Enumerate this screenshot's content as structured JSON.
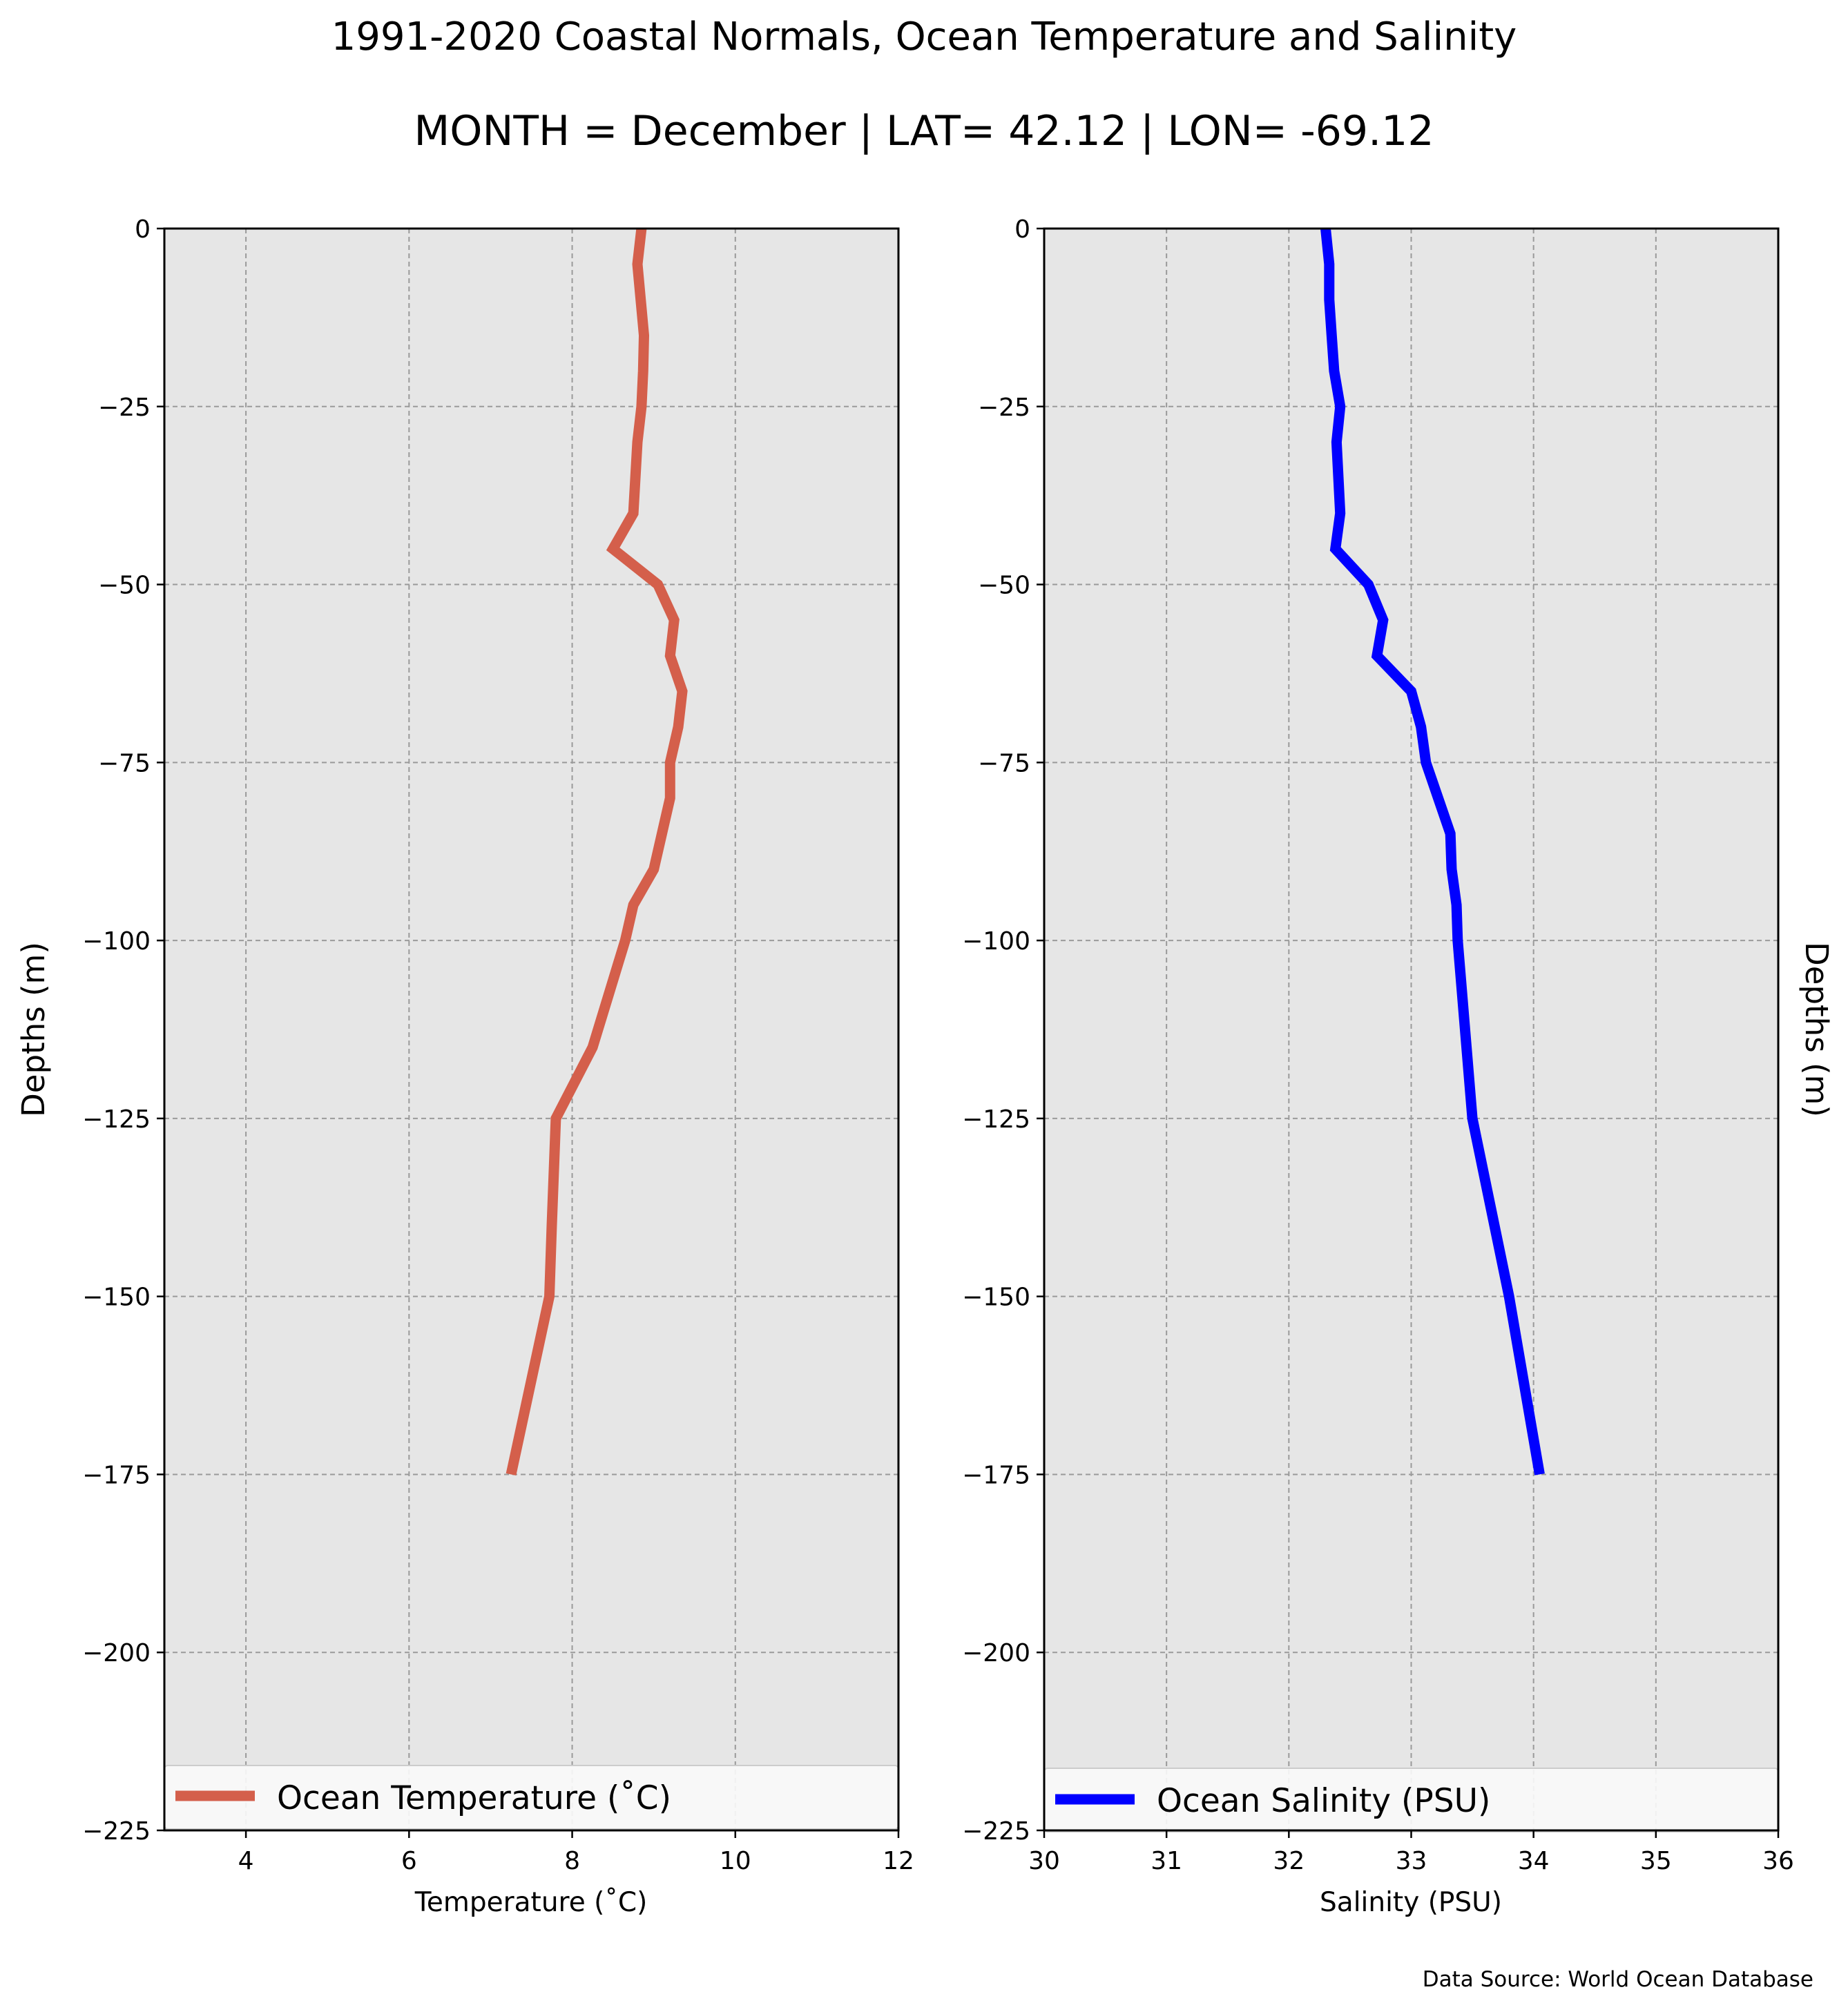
{
  "title": "1991-2020 Coastal Normals, Ocean Temperature and Salinity",
  "subtitle": "MONTH = December | LAT= 42.12 | LON= -69.12",
  "source": "Data Source: World Ocean Database",
  "colors": {
    "temperature": "#d45f4b",
    "salinity": "#0000ff",
    "plot_background": "#e6e6e6",
    "grid": "#9a9a9a"
  },
  "chart_data": [
    {
      "type": "line",
      "xlabel": "Temperature ($^\\circ$C)",
      "xlabel_display": "Temperature (˚C)",
      "ylabel": "Depths (m)",
      "ylabel_side": "left",
      "xlim": [
        3,
        12
      ],
      "ylim": [
        -225,
        0
      ],
      "xticks": [
        4,
        6,
        8,
        10,
        12
      ],
      "xtick_labels": [
        "4",
        "6",
        "8",
        "10",
        "12"
      ],
      "yticks": [
        0,
        -25,
        -50,
        -75,
        -100,
        -125,
        -150,
        -175,
        -200,
        -225
      ],
      "ytick_labels": [
        "0",
        "−25",
        "−50",
        "−75",
        "−100",
        "−125",
        "−150",
        "−175",
        "−200",
        "−225"
      ],
      "grid": true,
      "legend": "lower center",
      "series": [
        {
          "name": "Ocean Temperature ($^\\circ$C)",
          "name_display": "Ocean Temperature (˚C)",
          "color": "#d45f4b",
          "x": [
            8.85,
            8.8,
            8.88,
            8.87,
            8.85,
            8.8,
            8.75,
            8.5,
            9.05,
            9.25,
            9.2,
            9.35,
            9.3,
            9.2,
            9.2,
            9.1,
            9.0,
            8.75,
            8.65,
            8.25,
            7.8,
            7.75,
            7.72,
            7.25
          ],
          "y": [
            0,
            -5,
            -15,
            -20,
            -25,
            -30,
            -40,
            -45,
            -50,
            -55,
            -60,
            -65,
            -70,
            -75,
            -80,
            -85,
            -90,
            -95,
            -100,
            -115,
            -125,
            -140,
            -150,
            -175
          ]
        }
      ]
    },
    {
      "type": "line",
      "xlabel": "Salinity (PSU)",
      "ylabel": "Depths (m)",
      "ylabel_side": "right",
      "xlim": [
        30,
        36
      ],
      "ylim": [
        -225,
        0
      ],
      "xticks": [
        30,
        31,
        32,
        33,
        34,
        35,
        36
      ],
      "xtick_labels": [
        "30",
        "31",
        "32",
        "33",
        "34",
        "35",
        "36"
      ],
      "yticks": [
        0,
        -25,
        -50,
        -75,
        -100,
        -125,
        -150,
        -175,
        -200,
        -225
      ],
      "ytick_labels": [
        "0",
        "−25",
        "−50",
        "−75",
        "−100",
        "−125",
        "−150",
        "−175",
        "−200",
        "−225"
      ],
      "grid": true,
      "legend": "lower center",
      "series": [
        {
          "name": "Ocean Salinity (PSU)",
          "color": "#0000ff",
          "x": [
            32.3,
            32.33,
            32.33,
            32.35,
            32.37,
            32.42,
            32.39,
            32.42,
            32.38,
            32.65,
            32.77,
            32.72,
            33.0,
            33.08,
            33.12,
            33.32,
            33.33,
            33.37,
            33.38,
            33.5,
            33.8,
            34.05
          ],
          "y": [
            0,
            -5,
            -10,
            -15,
            -20,
            -25,
            -30,
            -40,
            -45,
            -50,
            -55,
            -60,
            -65,
            -70,
            -75,
            -85,
            -90,
            -95,
            -100,
            -125,
            -150,
            -175
          ]
        }
      ]
    }
  ]
}
